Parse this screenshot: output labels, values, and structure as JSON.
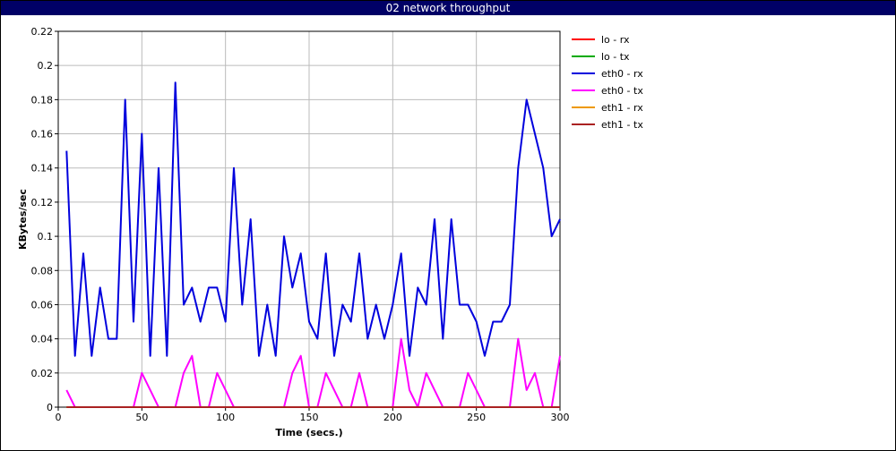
{
  "window": {
    "title": "02 network throughput"
  },
  "chart_data": {
    "type": "line",
    "title": "02 network throughput",
    "xlabel": "Time (secs.)",
    "ylabel": "KBytes/sec",
    "xlim": [
      0,
      300
    ],
    "ylim": [
      0,
      0.22
    ],
    "x_ticks": [
      "0",
      "50",
      "100",
      "150",
      "200",
      "250",
      "300"
    ],
    "y_ticks": [
      "0",
      "0.02",
      "0.04",
      "0.06",
      "0.08",
      "0.1",
      "0.12",
      "0.14",
      "0.16",
      "0.18",
      "0.2",
      "0.22"
    ],
    "grid": true,
    "legend_position": "right",
    "series": [
      {
        "name": "lo - rx",
        "color": "#ff0000",
        "x": [
          5,
          300
        ],
        "y": [
          0,
          0
        ]
      },
      {
        "name": "lo - tx",
        "color": "#00aa00",
        "x": [
          5,
          300
        ],
        "y": [
          0,
          0
        ]
      },
      {
        "name": "eth0 - rx",
        "color": "#0000dd",
        "x": [
          5,
          10,
          15,
          20,
          25,
          30,
          35,
          40,
          45,
          50,
          55,
          60,
          65,
          70,
          75,
          80,
          85,
          90,
          95,
          100,
          105,
          110,
          115,
          120,
          125,
          130,
          135,
          140,
          145,
          150,
          155,
          160,
          165,
          170,
          175,
          180,
          185,
          190,
          195,
          200,
          205,
          210,
          215,
          220,
          225,
          230,
          235,
          240,
          245,
          250,
          255,
          260,
          265,
          270,
          275,
          280,
          285,
          290,
          295,
          300
        ],
        "y": [
          0.15,
          0.03,
          0.09,
          0.03,
          0.07,
          0.04,
          0.04,
          0.18,
          0.05,
          0.16,
          0.03,
          0.14,
          0.03,
          0.19,
          0.06,
          0.07,
          0.05,
          0.07,
          0.07,
          0.05,
          0.14,
          0.06,
          0.11,
          0.03,
          0.06,
          0.03,
          0.1,
          0.07,
          0.09,
          0.05,
          0.04,
          0.09,
          0.03,
          0.06,
          0.05,
          0.09,
          0.04,
          0.06,
          0.04,
          0.06,
          0.09,
          0.03,
          0.07,
          0.06,
          0.11,
          0.04,
          0.11,
          0.06,
          0.06,
          0.05,
          0.03,
          0.05,
          0.05,
          0.06,
          0.14,
          0.18,
          0.16,
          0.14,
          0.1,
          0.11
        ]
      },
      {
        "name": "eth0 - tx",
        "color": "#ff00ff",
        "x": [
          5,
          10,
          15,
          20,
          25,
          30,
          35,
          40,
          45,
          50,
          55,
          60,
          65,
          70,
          75,
          80,
          85,
          90,
          95,
          100,
          105,
          110,
          115,
          120,
          125,
          130,
          135,
          140,
          145,
          150,
          155,
          160,
          165,
          170,
          175,
          180,
          185,
          190,
          195,
          200,
          205,
          210,
          215,
          220,
          225,
          230,
          235,
          240,
          245,
          250,
          255,
          260,
          265,
          270,
          275,
          280,
          285,
          290,
          295,
          300
        ],
        "y": [
          0.01,
          0,
          0,
          0,
          0,
          0,
          0,
          0,
          0,
          0.02,
          0.01,
          0,
          0,
          0,
          0.02,
          0.03,
          0,
          0,
          0.02,
          0.01,
          0,
          0,
          0,
          0,
          0,
          0,
          0,
          0.02,
          0.03,
          0,
          0,
          0.02,
          0.01,
          0,
          0,
          0.02,
          0,
          0,
          0,
          0,
          0.04,
          0.01,
          0,
          0.02,
          0.01,
          0,
          0,
          0,
          0.02,
          0.01,
          0,
          0,
          0,
          0,
          0.04,
          0.01,
          0.02,
          0,
          0,
          0.03
        ]
      },
      {
        "name": "eth1 - rx",
        "color": "#ee9900",
        "x": [
          5,
          300
        ],
        "y": [
          0,
          0
        ]
      },
      {
        "name": "eth1 - tx",
        "color": "#aa2222",
        "x": [
          5,
          300
        ],
        "y": [
          0,
          0
        ]
      }
    ]
  }
}
